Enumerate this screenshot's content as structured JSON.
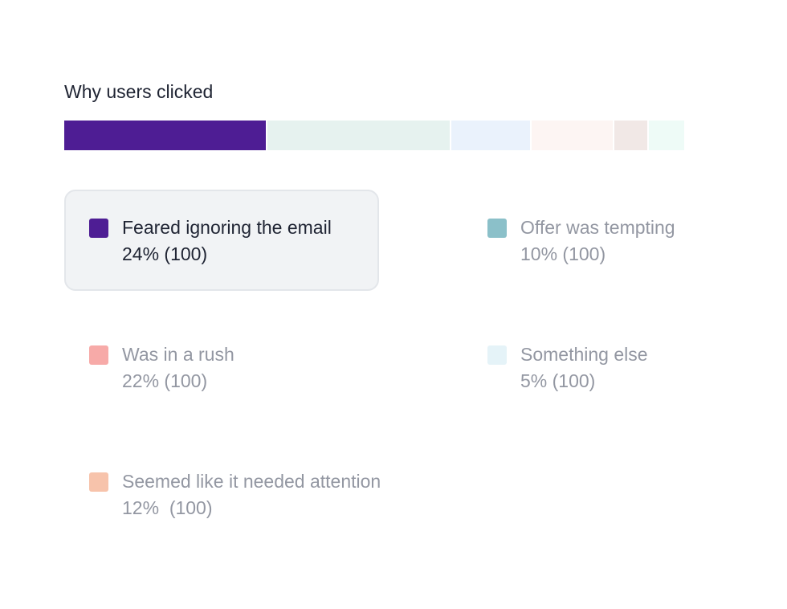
{
  "chart_data": {
    "type": "bar",
    "orientation": "horizontal-stacked",
    "title": "Why users clicked",
    "selected_index": 0,
    "categories": [
      "Feared ignoring the email",
      "Offer was tempting",
      "Was in a rush",
      "Something else",
      "Seemed like it needed attention"
    ],
    "series": [
      {
        "label": "Feared ignoring the email",
        "percent": 24,
        "count": 100,
        "value_text": "24% (100)",
        "color": "#4e1d94",
        "muted_color": "#4e1d94"
      },
      {
        "label": "Offer was tempting",
        "percent": 10,
        "count": 100,
        "value_text": "10% (100)",
        "color": "#8bc0c9",
        "muted_color": "#e6f2ef"
      },
      {
        "label": "Was in a rush",
        "percent": 22,
        "count": 100,
        "value_text": "22% (100)",
        "color": "#f7aaa8",
        "muted_color": "#eaf2fc"
      },
      {
        "label": "Something else",
        "percent": 5,
        "count": 100,
        "value_text": "5% (100)",
        "color": "#e5f3f8",
        "muted_color": "#fdf5f3"
      },
      {
        "label": "Seemed like it needed attention",
        "percent": 12,
        "count": 100,
        "value_text": "12%  (100)",
        "color": "#f7c3ab",
        "muted_color": "#f1e8e6"
      }
    ],
    "extra_segment": {
      "color": "#eefbf7"
    },
    "legend_placement": "below"
  }
}
